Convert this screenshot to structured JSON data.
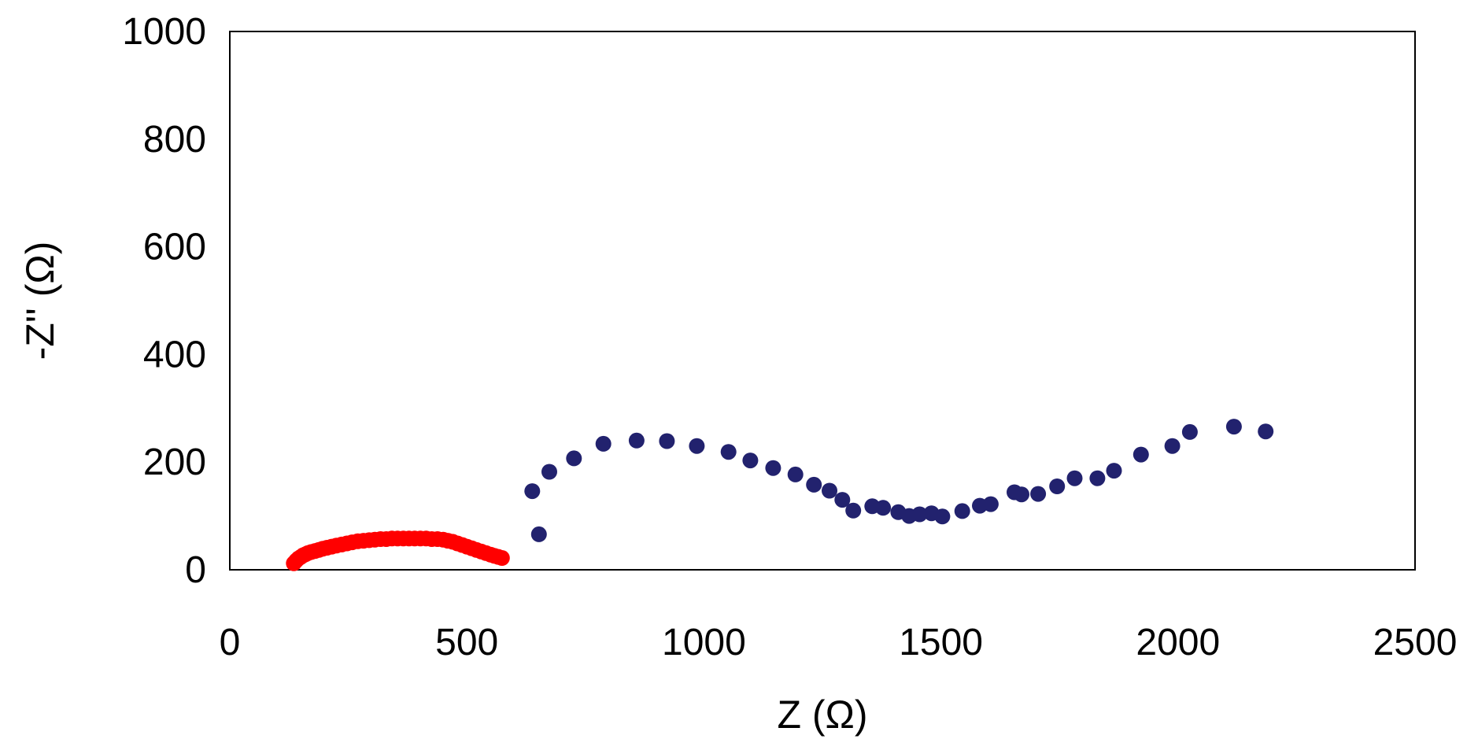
{
  "chart_data": {
    "type": "scatter",
    "title": "",
    "xlabel": "Z (Ω)",
    "ylabel": "-Z'' (Ω)",
    "xlim": [
      0,
      2500
    ],
    "ylim": [
      0,
      1000
    ],
    "xticks": [
      "0",
      "500",
      "1000",
      "1500",
      "2000",
      "2500"
    ],
    "yticks": [
      "0",
      "200",
      "400",
      "600",
      "800",
      "1000"
    ],
    "grid": false,
    "legend": "none",
    "series": [
      {
        "color": "#ff0000",
        "points": [
          [
            135,
            12
          ],
          [
            140,
            17
          ],
          [
            145,
            21
          ],
          [
            150,
            24
          ],
          [
            155,
            27
          ],
          [
            160,
            29
          ],
          [
            165,
            31
          ],
          [
            172,
            33
          ],
          [
            180,
            35
          ],
          [
            188,
            37
          ],
          [
            196,
            39
          ],
          [
            205,
            41
          ],
          [
            215,
            43
          ],
          [
            225,
            45
          ],
          [
            236,
            47
          ],
          [
            247,
            49
          ],
          [
            258,
            51
          ],
          [
            270,
            53
          ],
          [
            282,
            54
          ],
          [
            294,
            55
          ],
          [
            306,
            56
          ],
          [
            318,
            57
          ],
          [
            330,
            57
          ],
          [
            342,
            58
          ],
          [
            354,
            58
          ],
          [
            366,
            58
          ],
          [
            378,
            58
          ],
          [
            390,
            58
          ],
          [
            402,
            58
          ],
          [
            414,
            58
          ],
          [
            426,
            57
          ],
          [
            438,
            57
          ],
          [
            450,
            56
          ],
          [
            460,
            54
          ],
          [
            470,
            52
          ],
          [
            480,
            49
          ],
          [
            490,
            46
          ],
          [
            500,
            43
          ],
          [
            510,
            40
          ],
          [
            520,
            37
          ],
          [
            530,
            34
          ],
          [
            540,
            31
          ],
          [
            550,
            28
          ],
          [
            558,
            26
          ],
          [
            566,
            24
          ],
          [
            574,
            22
          ]
        ]
      },
      {
        "color": "#22226e",
        "points": [
          [
            638,
            146
          ],
          [
            652,
            66
          ],
          [
            674,
            182
          ],
          [
            726,
            207
          ],
          [
            788,
            234
          ],
          [
            858,
            240
          ],
          [
            922,
            239
          ],
          [
            985,
            230
          ],
          [
            1052,
            219
          ],
          [
            1098,
            203
          ],
          [
            1146,
            189
          ],
          [
            1193,
            177
          ],
          [
            1232,
            158
          ],
          [
            1265,
            147
          ],
          [
            1292,
            130
          ],
          [
            1315,
            110
          ],
          [
            1355,
            118
          ],
          [
            1378,
            115
          ],
          [
            1410,
            107
          ],
          [
            1433,
            100
          ],
          [
            1455,
            103
          ],
          [
            1480,
            105
          ],
          [
            1503,
            99
          ],
          [
            1545,
            109
          ],
          [
            1582,
            119
          ],
          [
            1605,
            122
          ],
          [
            1655,
            144
          ],
          [
            1670,
            140
          ],
          [
            1705,
            141
          ],
          [
            1745,
            155
          ],
          [
            1782,
            170
          ],
          [
            1830,
            170
          ],
          [
            1865,
            184
          ],
          [
            1922,
            214
          ],
          [
            1988,
            230
          ],
          [
            2025,
            256
          ],
          [
            2118,
            266
          ],
          [
            2185,
            257
          ]
        ]
      }
    ]
  }
}
